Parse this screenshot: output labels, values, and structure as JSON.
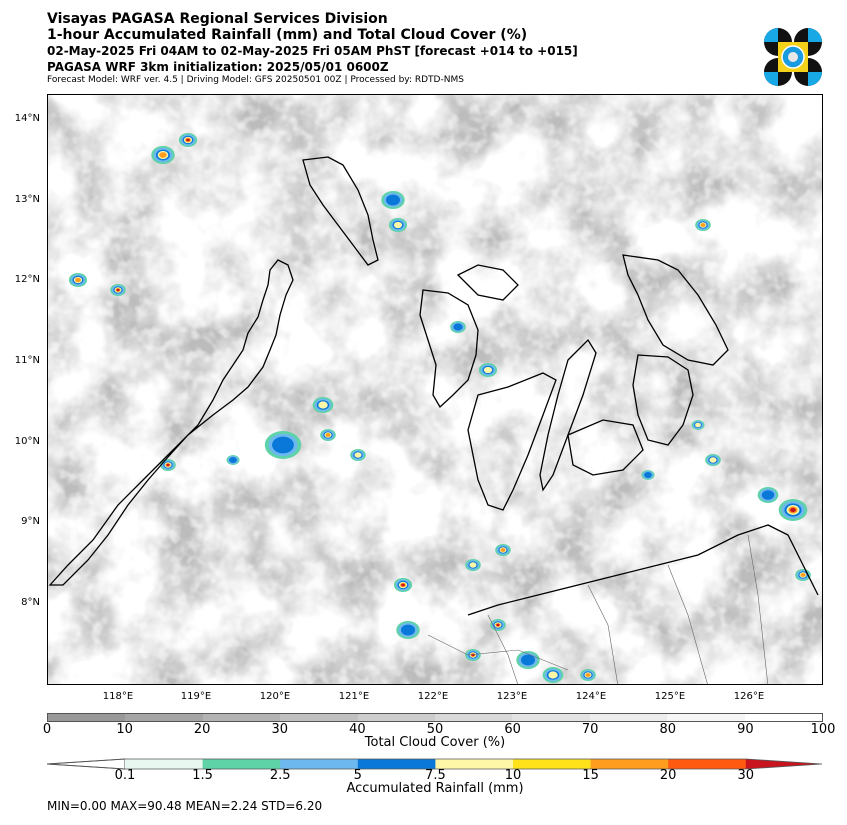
{
  "header": {
    "line1": "Visayas PAGASA Regional Services Division",
    "line2": "1-hour Accumulated Rainfall (mm) and Total Cloud Cover (%)",
    "line3": "02-May-2025 Fri 04AM to 02-May-2025 Fri 05AM PhST [forecast +014 to +015]",
    "line4": "PAGASA WRF 3km initialization: 2025/05/01 0600Z",
    "line5": "Forecast Model: WRF ver. 4.5 | Driving Model: GFS 20250501 00Z | Processed by: RDTD-NMS"
  },
  "map": {
    "lat_labels": [
      "14°N",
      "13°N",
      "12°N",
      "11°N",
      "10°N",
      "9°N",
      "8°N"
    ],
    "lon_labels": [
      "118°E",
      "119°E",
      "120°E",
      "121°E",
      "122°E",
      "123°E",
      "124°E",
      "125°E",
      "126°E"
    ]
  },
  "cloud_cover_bar": {
    "title": "Total Cloud Cover (%)",
    "ticks": [
      "0",
      "10",
      "20",
      "30",
      "40",
      "50",
      "60",
      "70",
      "80",
      "90",
      "100"
    ],
    "colors": [
      "#999999",
      "#a5a5a5",
      "#b3b3b3",
      "#c0c0c0",
      "#cdcdcd",
      "#d9d9d9",
      "#e3e3e3",
      "#ededed",
      "#f6f6f6",
      "#ffffff"
    ]
  },
  "rainfall_bar": {
    "title": "Accumulated Rainfall (mm)",
    "ticks": [
      "0.1",
      "1.5",
      "2.5",
      "5",
      "7.5",
      "10",
      "15",
      "20",
      "30"
    ],
    "colors": [
      "#e8f8f0",
      "#5fd3a8",
      "#6eb8f0",
      "#0a78d8",
      "#fff7a8",
      "#ffe21a",
      "#ff9e1e",
      "#ff5a10",
      "#c8141e"
    ]
  },
  "stats": "MIN=0.00   MAX=90.48   MEAN=2.24   STD=6.20"
}
